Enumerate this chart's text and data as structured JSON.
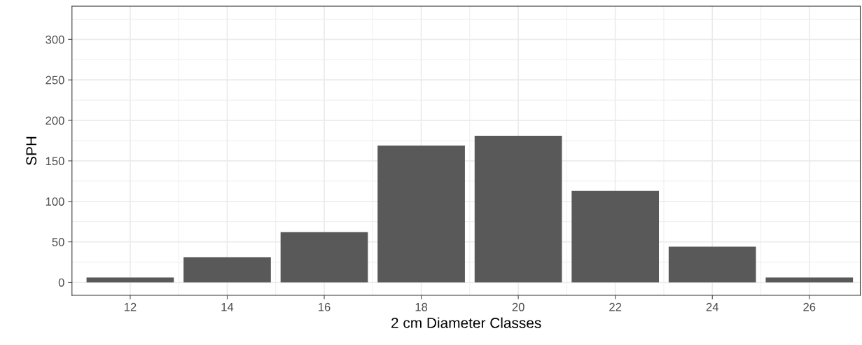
{
  "chart_data": {
    "type": "bar",
    "xlabel": "2 cm Diameter Classes",
    "ylabel": "SPH",
    "x": [
      12,
      14,
      16,
      18,
      20,
      22,
      24,
      26
    ],
    "values": [
      6,
      31,
      62,
      169,
      181,
      113,
      44,
      6
    ],
    "color": "#595959",
    "xlim": [
      10.8,
      27.05
    ],
    "xticks": [
      12,
      14,
      16,
      18,
      20,
      22,
      24,
      26
    ],
    "ylim": [
      -16,
      341
    ],
    "yticks": [
      0,
      50,
      100,
      150,
      200,
      250,
      300
    ],
    "grid": true
  }
}
